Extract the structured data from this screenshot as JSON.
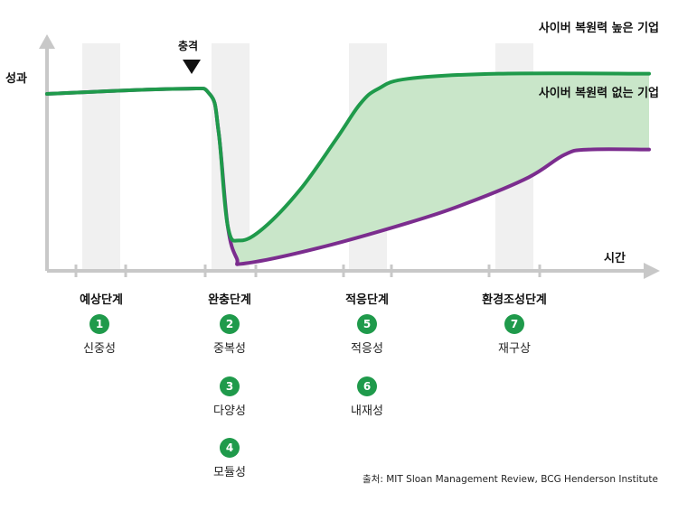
{
  "chart_data": {
    "type": "line",
    "ylabel": "성과",
    "xlabel": "시간",
    "shock_label": "충격",
    "series": [
      {
        "name": "사이버 복원력 높은 기업",
        "color": "#1f9a4b",
        "points": [
          [
            0,
            0.7
          ],
          [
            0.22,
            0.72
          ],
          [
            0.27,
            0.7
          ],
          [
            0.285,
            0.55
          ],
          [
            0.3,
            0.18
          ],
          [
            0.32,
            0.12
          ],
          [
            0.36,
            0.17
          ],
          [
            0.42,
            0.32
          ],
          [
            0.48,
            0.52
          ],
          [
            0.52,
            0.66
          ],
          [
            0.55,
            0.72
          ],
          [
            0.6,
            0.76
          ],
          [
            0.75,
            0.78
          ],
          [
            1.0,
            0.78
          ]
        ]
      },
      {
        "name": "사이버 복원력 없는 기업",
        "color": "#7b2d8e",
        "points": [
          [
            0,
            0.7
          ],
          [
            0.22,
            0.72
          ],
          [
            0.27,
            0.7
          ],
          [
            0.285,
            0.55
          ],
          [
            0.3,
            0.18
          ],
          [
            0.315,
            0.05
          ],
          [
            0.33,
            0.03
          ],
          [
            0.45,
            0.09
          ],
          [
            0.6,
            0.19
          ],
          [
            0.7,
            0.27
          ],
          [
            0.8,
            0.37
          ],
          [
            0.86,
            0.46
          ],
          [
            0.9,
            0.48
          ],
          [
            1.0,
            0.48
          ]
        ]
      }
    ],
    "band_color": "#c9e6c9"
  },
  "phases": [
    {
      "label": "예상단계",
      "items": [
        {
          "num": "1",
          "label": "신중성"
        }
      ]
    },
    {
      "label": "완충단계",
      "items": [
        {
          "num": "2",
          "label": "중복성"
        },
        {
          "num": "3",
          "label": "다양성"
        },
        {
          "num": "4",
          "label": "모듈성"
        }
      ]
    },
    {
      "label": "적응단계",
      "items": [
        {
          "num": "5",
          "label": "적응성"
        },
        {
          "num": "6",
          "label": "내재성"
        }
      ]
    },
    {
      "label": "환경조성단계",
      "items": [
        {
          "num": "7",
          "label": "재구상"
        }
      ]
    }
  ],
  "source": "출처: MIT Sloan Management Review,  BCG Henderson Institute"
}
